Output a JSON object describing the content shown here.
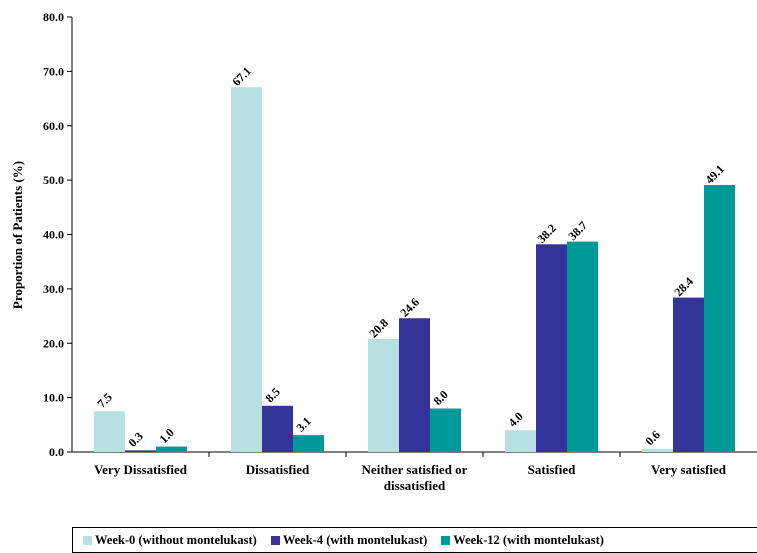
{
  "chart_data": {
    "type": "bar",
    "title": "",
    "xlabel": "",
    "ylabel": "Proportion of Patients (%)",
    "ylim": [
      0,
      80
    ],
    "yticks": [
      "0.0",
      "10.0",
      "20.0",
      "30.0",
      "40.0",
      "50.0",
      "60.0",
      "70.0",
      "80.0"
    ],
    "categories": [
      [
        "Very Dissatisfied"
      ],
      [
        "Dissatisfied"
      ],
      [
        "Neither satisfied or",
        "dissatisfied"
      ],
      [
        "Satisfied"
      ],
      [
        "Very satisfied"
      ]
    ],
    "series": [
      {
        "name": "Week-0 (without montelukast)",
        "color": "#b7e0e3",
        "values": [
          7.5,
          67.1,
          20.8,
          4.0,
          0.6
        ]
      },
      {
        "name": "Week-4 (with montelukast)",
        "color": "#333399",
        "values": [
          0.3,
          8.5,
          24.6,
          38.2,
          28.4
        ]
      },
      {
        "name": "Week-12 (with montelukast)",
        "color": "#009999",
        "values": [
          1.0,
          3.1,
          8.0,
          38.7,
          49.1
        ]
      }
    ],
    "grid": false,
    "legend": "bottom"
  }
}
